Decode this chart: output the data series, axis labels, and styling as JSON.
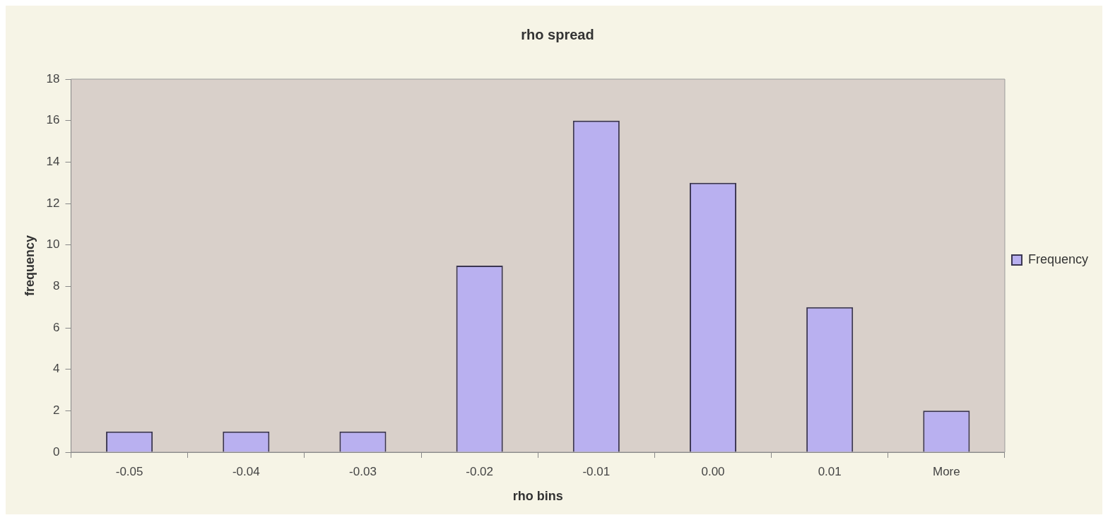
{
  "chart_data": {
    "type": "bar",
    "title": "rho spread",
    "xlabel": "rho bins",
    "ylabel": "frequency",
    "categories": [
      "-0.05",
      "-0.04",
      "-0.03",
      "-0.02",
      "-0.01",
      "0.00",
      "0.01",
      "More"
    ],
    "series": [
      {
        "name": "Frequency",
        "color": "#b9b0f0",
        "values": [
          1,
          1,
          1,
          9,
          16,
          13,
          7,
          2
        ]
      }
    ],
    "ylim": [
      0,
      18
    ],
    "yticks": [
      0,
      2,
      4,
      6,
      8,
      10,
      12,
      14,
      16,
      18
    ],
    "grid": false,
    "legend": "right"
  }
}
